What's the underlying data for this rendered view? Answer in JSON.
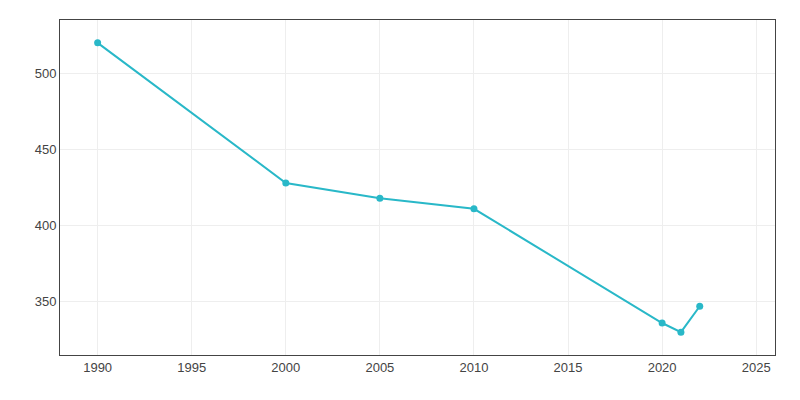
{
  "chart_data": {
    "type": "line",
    "x": [
      1990,
      2000,
      2005,
      2010,
      2020,
      2021,
      2022
    ],
    "values": [
      520,
      428,
      418,
      411,
      336,
      330,
      347
    ],
    "color": "#29b8c8",
    "marker": "o",
    "xlim": [
      1988,
      2026
    ],
    "ylim": [
      315,
      535
    ],
    "xticks": [
      1990,
      1995,
      2000,
      2005,
      2010,
      2015,
      2020,
      2025
    ],
    "yticks": [
      350,
      400,
      450,
      500
    ],
    "grid": true
  }
}
